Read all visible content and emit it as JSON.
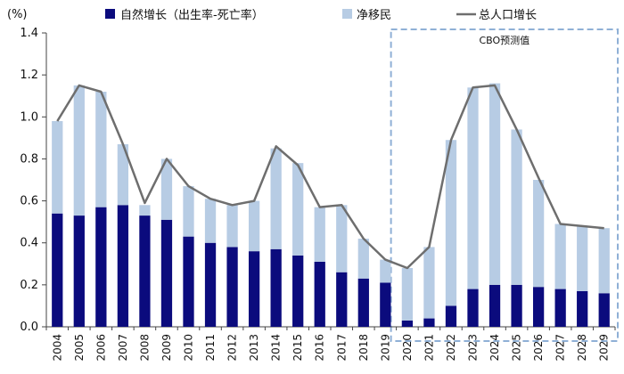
{
  "chart_data": {
    "type": "bar",
    "stacked": true,
    "unit_label": "(%)",
    "categories": [
      "2004",
      "2005",
      "2006",
      "2007",
      "2008",
      "2009",
      "2010",
      "2011",
      "2012",
      "2013",
      "2014",
      "2015",
      "2016",
      "2017",
      "2018",
      "2019",
      "2020",
      "2021",
      "2022",
      "2023",
      "2024",
      "2025",
      "2026",
      "2027",
      "2028",
      "2029"
    ],
    "series": [
      {
        "name": "自然增长（出生率-死亡率）",
        "kind": "bar",
        "color": "#0b0b7d",
        "values": [
          0.54,
          0.53,
          0.57,
          0.58,
          0.53,
          0.51,
          0.43,
          0.4,
          0.38,
          0.36,
          0.37,
          0.34,
          0.31,
          0.26,
          0.23,
          0.21,
          0.03,
          0.04,
          0.1,
          0.18,
          0.2,
          0.2,
          0.19,
          0.18,
          0.17,
          0.16
        ]
      },
      {
        "name": "净移民",
        "kind": "bar",
        "color": "#b7cce4",
        "values": [
          0.44,
          0.62,
          0.55,
          0.29,
          0.05,
          0.29,
          0.24,
          0.21,
          0.2,
          0.24,
          0.48,
          0.44,
          0.26,
          0.32,
          0.19,
          0.11,
          0.25,
          0.34,
          0.79,
          0.96,
          0.96,
          0.74,
          0.51,
          0.31,
          0.31,
          0.31
        ]
      },
      {
        "name": "总人口增长",
        "kind": "line",
        "color": "#6e6e6e",
        "values": [
          0.98,
          1.15,
          1.12,
          0.87,
          0.59,
          0.8,
          0.67,
          0.61,
          0.58,
          0.6,
          0.86,
          0.77,
          0.57,
          0.58,
          0.42,
          0.32,
          0.28,
          0.38,
          0.89,
          1.14,
          1.15,
          0.94,
          0.71,
          0.49,
          0.48,
          0.47
        ]
      }
    ],
    "ylim": [
      0,
      1.4
    ],
    "yticks": [
      "0.0",
      "0.2",
      "0.4",
      "0.6",
      "0.8",
      "1.0",
      "1.2",
      "1.4"
    ],
    "projection": {
      "label": "CBO预测值",
      "from": "2020",
      "to": "2029",
      "border_color": "#8fb0d6"
    },
    "legend_position": "top"
  }
}
